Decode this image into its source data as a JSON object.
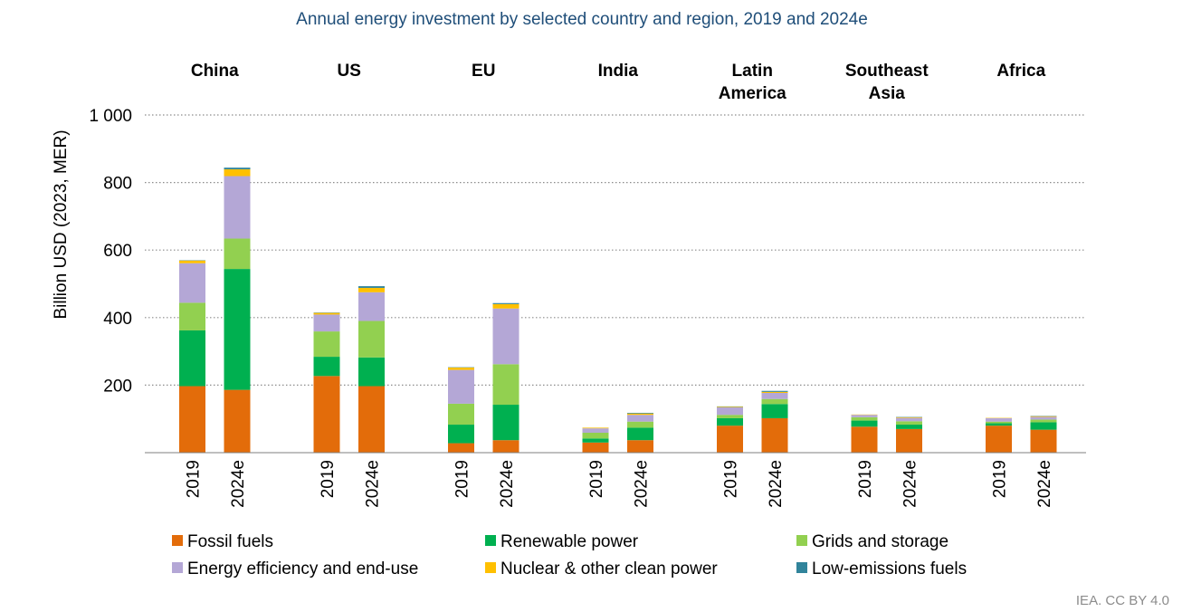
{
  "chart_data": {
    "type": "bar",
    "stacked": true,
    "title": "Annual energy investment by selected country and region, 2019 and 2024e",
    "ylabel": "Billion USD (2023, MER)",
    "ylim": [
      0,
      1000
    ],
    "yticks": [
      200,
      400,
      600,
      800,
      1000
    ],
    "ytick_labels": [
      "200",
      "400",
      "600",
      "800",
      "1 000"
    ],
    "grid": true,
    "legend_position": "bottom",
    "groups": [
      {
        "name": "China",
        "categories": [
          "2019",
          "2024e"
        ]
      },
      {
        "name": "US",
        "categories": [
          "2019",
          "2024e"
        ]
      },
      {
        "name": "EU",
        "categories": [
          "2019",
          "2024e"
        ]
      },
      {
        "name": "India",
        "categories": [
          "2019",
          "2024e"
        ]
      },
      {
        "name": "Latin\nAmerica",
        "categories": [
          "2019",
          "2024e"
        ]
      },
      {
        "name": "Southeast\nAsia",
        "categories": [
          "2019",
          "2024e"
        ]
      },
      {
        "name": "Africa",
        "categories": [
          "2019",
          "2024e"
        ]
      }
    ],
    "categories": [
      "China 2019",
      "China 2024e",
      "US 2019",
      "US 2024e",
      "EU 2019",
      "EU 2024e",
      "India 2019",
      "India 2024e",
      "Latin America 2019",
      "Latin America 2024e",
      "Southeast Asia 2019",
      "Southeast Asia 2024e",
      "Africa 2019",
      "Africa 2024e"
    ],
    "series": [
      {
        "name": "Fossil fuels",
        "color": "#e36c0a",
        "values": [
          197,
          186,
          227,
          197,
          28,
          37,
          30,
          37,
          80,
          102,
          77,
          70,
          80,
          68
        ]
      },
      {
        "name": "Renewable power",
        "color": "#00b050",
        "values": [
          165,
          358,
          57,
          85,
          55,
          105,
          12,
          37,
          22,
          42,
          18,
          13,
          7,
          22
        ]
      },
      {
        "name": "Grids and storage",
        "color": "#92d050",
        "values": [
          82,
          90,
          75,
          108,
          62,
          120,
          17,
          18,
          10,
          15,
          10,
          10,
          5,
          8
        ]
      },
      {
        "name": "Energy efficiency and end-use",
        "color": "#b4a7d6",
        "values": [
          117,
          185,
          50,
          85,
          100,
          165,
          13,
          20,
          22,
          18,
          7,
          10,
          10,
          8
        ]
      },
      {
        "name": "Nuclear & other clean power",
        "color": "#ffc000",
        "values": [
          8,
          20,
          5,
          13,
          7,
          13,
          2,
          4,
          2,
          3,
          1,
          2,
          1,
          2
        ]
      },
      {
        "name": "Low-emissions fuels",
        "color": "#31849b",
        "values": [
          1,
          5,
          1,
          5,
          1,
          3,
          0,
          2,
          1,
          3,
          0,
          1,
          0,
          1
        ]
      }
    ]
  },
  "source_note": "IEA. CC BY 4.0"
}
